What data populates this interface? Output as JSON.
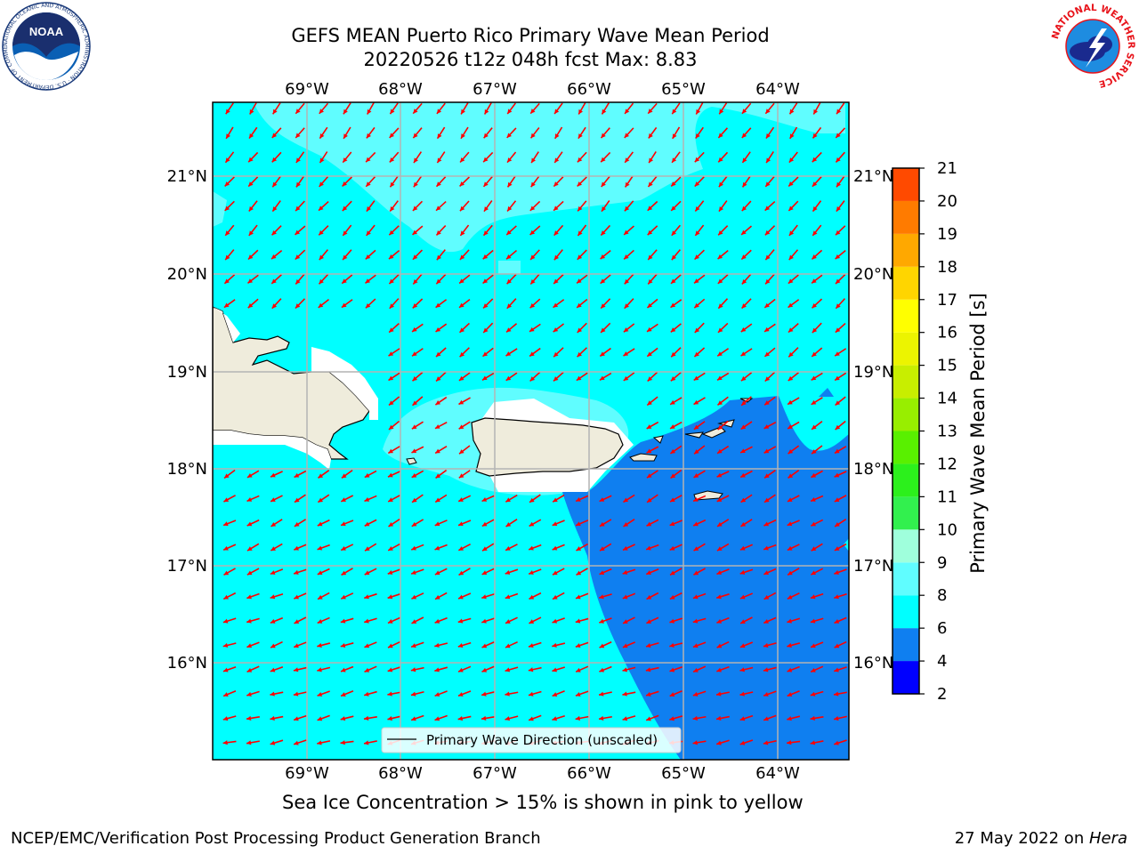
{
  "title": {
    "line1": "GEFS MEAN Puerto Rico Primary Wave Mean Period",
    "line2": "20220526 t12z 048h fcst   Max: 8.83"
  },
  "map": {
    "longitude_ticks": [
      "69°W",
      "68°W",
      "67°W",
      "66°W",
      "65°W",
      "64°W"
    ],
    "latitude_ticks": [
      "21°N",
      "20°N",
      "19°N",
      "18°N",
      "17°N",
      "16°N"
    ],
    "legend_label": "Primary Wave Direction (unscaled)",
    "land_color": "#efecdc",
    "coastline_color": "#000000",
    "arrow_color": "#ff0000",
    "grid_color": "#b4b4b4"
  },
  "colorbar": {
    "label": "Primary Wave Mean Period [s]",
    "ticks": [
      "2",
      "4",
      "6",
      "8",
      "9",
      "10",
      "11",
      "12",
      "13",
      "14",
      "15",
      "16",
      "17",
      "18",
      "19",
      "20",
      "21"
    ],
    "colors": [
      "#0000ff",
      "#0f7ff0",
      "#00ffff",
      "#60fdff",
      "#9fffdc",
      "#32f04e",
      "#2cf01c",
      "#59f000",
      "#98ee00",
      "#c8ee00",
      "#ecf400",
      "#ffff00",
      "#ffd500",
      "#ffa800",
      "#ff7b00",
      "#ff4a00",
      "#ff0000"
    ]
  },
  "note": "Sea Ice Concentration > 15% is shown in pink to yellow",
  "footer": {
    "left": "NCEP/EMC/Verification Post Processing Product Generation Branch",
    "right_prefix": "27 May 2022 on ",
    "right_host": "Hera"
  },
  "logos": {
    "noaa_text": "NOAA",
    "noaa_ring": "NATIONAL OCEANIC AND ATMOSPHERIC ADMINISTRATION · U.S. DEPARTMENT OF COMMERCE",
    "nws_ring": "NATIONAL WEATHER SERVICE"
  }
}
